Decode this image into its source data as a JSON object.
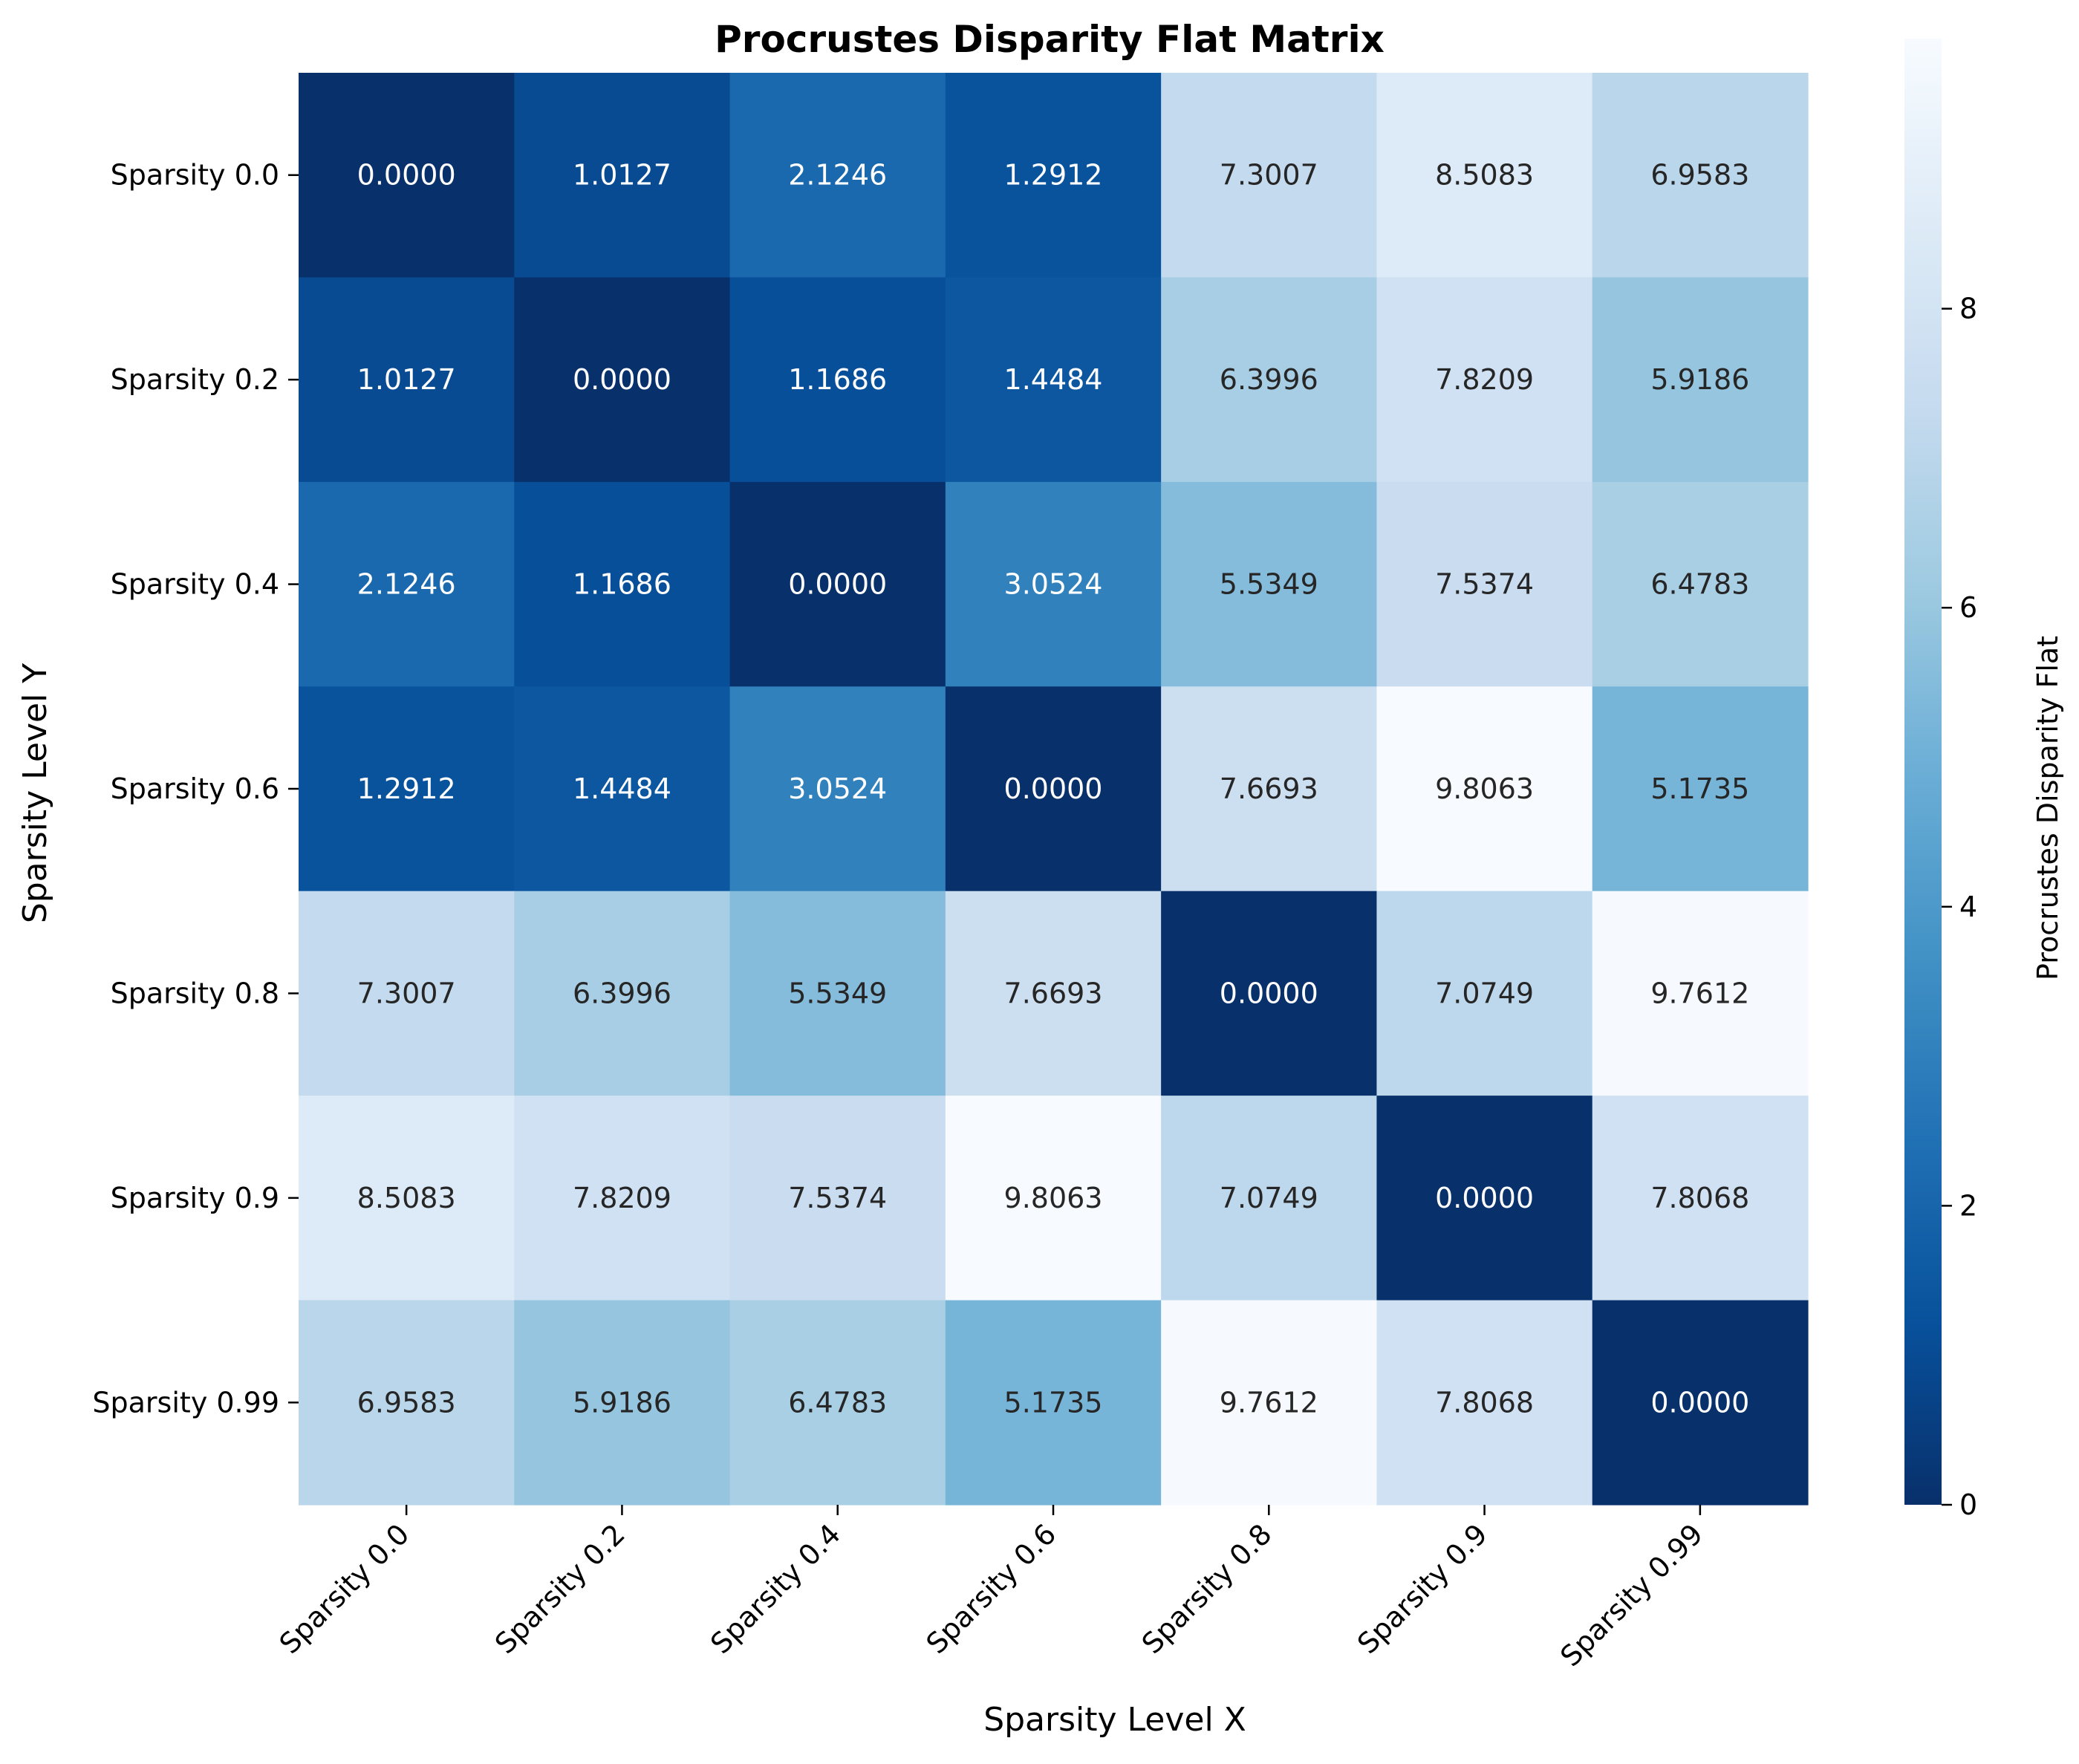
{
  "chart_data": {
    "type": "heatmap",
    "title": "Procrustes Disparity Flat Matrix",
    "xlabel": "Sparsity Level X",
    "ylabel": "Sparsity Level Y",
    "x_categories": [
      "Sparsity 0.0",
      "Sparsity 0.2",
      "Sparsity 0.4",
      "Sparsity 0.6",
      "Sparsity 0.8",
      "Sparsity 0.9",
      "Sparsity 0.99"
    ],
    "y_categories": [
      "Sparsity 0.0",
      "Sparsity 0.2",
      "Sparsity 0.4",
      "Sparsity 0.6",
      "Sparsity 0.8",
      "Sparsity 0.9",
      "Sparsity 0.99"
    ],
    "values": [
      [
        0.0,
        1.0127,
        2.1246,
        1.2912,
        7.3007,
        8.5083,
        6.9583
      ],
      [
        1.0127,
        0.0,
        1.1686,
        1.4484,
        6.3996,
        7.8209,
        5.9186
      ],
      [
        2.1246,
        1.1686,
        0.0,
        3.0524,
        5.5349,
        7.5374,
        6.4783
      ],
      [
        1.2912,
        1.4484,
        3.0524,
        0.0,
        7.6693,
        9.8063,
        5.1735
      ],
      [
        7.3007,
        6.3996,
        5.5349,
        7.6693,
        0.0,
        7.0749,
        9.7612
      ],
      [
        8.5083,
        7.8209,
        7.5374,
        9.8063,
        7.0749,
        0.0,
        7.8068
      ],
      [
        6.9583,
        5.9186,
        6.4783,
        5.1735,
        9.7612,
        7.8068,
        0.0
      ]
    ],
    "value_format_decimals": 4,
    "colormap": "Blues_r",
    "colorbar": {
      "label": "Procrustes Disparity Flat",
      "range": [
        0,
        9.8063
      ],
      "ticks": [
        0,
        2,
        4,
        6,
        8
      ]
    }
  }
}
